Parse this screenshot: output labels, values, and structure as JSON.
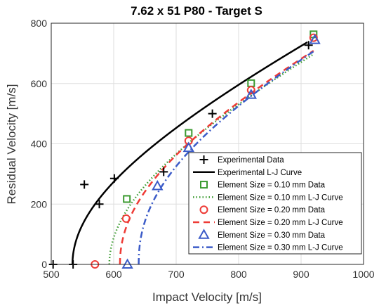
{
  "chart_data": {
    "type": "line",
    "title": "7.62 x 51 P80 - Target S",
    "xlabel": "Impact Velocity [m/s]",
    "ylabel": "Residual Velocity [m/s]",
    "xlim": [
      500,
      1000
    ],
    "ylim": [
      0,
      800
    ],
    "xticks": [
      500,
      600,
      700,
      800,
      900,
      1000
    ],
    "yticks": [
      0,
      200,
      400,
      600,
      800
    ],
    "grid": true,
    "legend_position": "bottom-right",
    "series": [
      {
        "name": "Experimental Data",
        "kind": "markers",
        "marker": "plus",
        "color": "#000000",
        "points": [
          [
            503,
            0
          ],
          [
            535,
            0
          ],
          [
            553,
            265
          ],
          [
            577,
            200
          ],
          [
            601,
            285
          ],
          [
            680,
            307
          ],
          [
            758,
            500
          ],
          [
            912,
            727
          ]
        ]
      },
      {
        "name": "Experimental L-J Curve",
        "kind": "curve",
        "style": "solid",
        "color": "#000000",
        "vbl": 534,
        "a": 1.0,
        "p": 2.0,
        "x_end": 910
      },
      {
        "name": "Element Size = 0.10 mm Data",
        "kind": "markers",
        "marker": "square",
        "color": "#3a9a2f",
        "points": [
          [
            621,
            217
          ],
          [
            720,
            436
          ],
          [
            820,
            601
          ],
          [
            920,
            763
          ]
        ]
      },
      {
        "name": "Element Size = 0.10 mm L-J Curve",
        "kind": "curve",
        "style": "dotted",
        "color": "#3a9a2f",
        "vbl": 593,
        "a": 1.0,
        "p": 1.97,
        "x_end": 920
      },
      {
        "name": "Element Size = 0.20 mm Data",
        "kind": "markers",
        "marker": "circle",
        "color": "#ee3b36",
        "points": [
          [
            570,
            0
          ],
          [
            620,
            152
          ],
          [
            720,
            410
          ],
          [
            820,
            578
          ],
          [
            920,
            752
          ]
        ]
      },
      {
        "name": "Element Size = 0.20 mm L-J Curve",
        "kind": "curve",
        "style": "dashed",
        "color": "#ee3b36",
        "vbl": 610,
        "a": 1.0,
        "p": 2.1,
        "x_end": 920
      },
      {
        "name": "Element Size = 0.30 mm Data",
        "kind": "markers",
        "marker": "triangle",
        "color": "#3b5bc8",
        "points": [
          [
            622,
            0
          ],
          [
            670,
            260
          ],
          [
            720,
            387
          ],
          [
            820,
            563
          ],
          [
            922,
            745
          ]
        ]
      },
      {
        "name": "Element Size = 0.30 mm L-J Curve",
        "kind": "curve",
        "style": "dashdot",
        "color": "#3b5bc8",
        "vbl": 640,
        "a": 1.0,
        "p": 2.23,
        "x_end": 920
      }
    ]
  }
}
